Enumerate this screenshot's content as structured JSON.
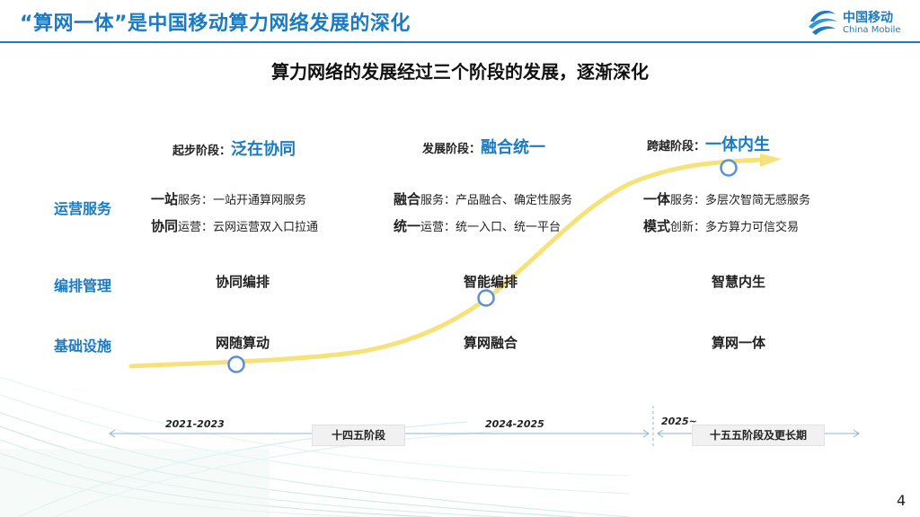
{
  "header": {
    "title": "“算网一体”是中国移动算力网络发展的深化",
    "logo_cn": "中国移动",
    "logo_en": "China Mobile"
  },
  "subtitle": "算力网络的发展经过三个阶段的发展，逐渐深化",
  "rows": {
    "ops": "运营服务",
    "orch": "编排管理",
    "infra": "基础设施"
  },
  "stages": [
    {
      "prefix": "起步阶段：",
      "name": "泛在协同",
      "svc1_key": "一站",
      "svc1_rest": "服务：一站开通算网服务",
      "svc2_key": "协同",
      "svc2_rest": "运营：云网运营双入口拉通",
      "orch": "协同编排",
      "infra": "网随算动",
      "period": "2021-2023"
    },
    {
      "prefix": "发展阶段：",
      "name": "融合统一",
      "svc1_key": "融合",
      "svc1_rest": "服务：产品融合、确定性服务",
      "svc2_key": "统一",
      "svc2_rest": "运营：统一入口、统一平台",
      "orch": "智能编排",
      "infra": "算网融合",
      "period": "2024-2025"
    },
    {
      "prefix": "跨越阶段：",
      "name": "一体内生",
      "svc1_key": "一体",
      "svc1_rest": "服务：多层次智简无感服务",
      "svc2_key": "模式",
      "svc2_rest": "创新：多方算力可信交易",
      "orch": "智慧内生",
      "infra": "算网一体",
      "period": "2025~"
    }
  ],
  "phases": {
    "p14": "十四五阶段",
    "p15": "十五五阶段及更长期"
  },
  "page_number": "4",
  "colors": {
    "accent": "#1a7bc4",
    "curve": "#f7e27a",
    "node": "#5b8fd6"
  }
}
